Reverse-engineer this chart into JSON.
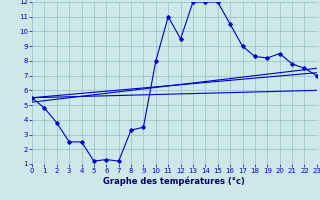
{
  "xlabel": "Graphe des températures (°c)",
  "bg_color": "#cce8e8",
  "grid_color": "#99bbcc",
  "line_color": "#0000cc",
  "x_min": 0,
  "x_max": 23,
  "y_min": 1,
  "y_max": 12,
  "line1_x": [
    0,
    1,
    2,
    3,
    4,
    5,
    6,
    7,
    8,
    9,
    10,
    11,
    12,
    13,
    14,
    15,
    16,
    17,
    18,
    19,
    20,
    21,
    22,
    23
  ],
  "line1_y": [
    5.5,
    4.8,
    3.8,
    2.5,
    2.5,
    1.2,
    1.3,
    1.2,
    3.3,
    3.5,
    8.0,
    11.0,
    9.5,
    12.0,
    12.0,
    12.0,
    10.5,
    9.0,
    8.3,
    8.2,
    8.5,
    7.8,
    7.5,
    7.0
  ],
  "line2_x": [
    0,
    23
  ],
  "line2_y": [
    5.5,
    7.2
  ],
  "line3_x": [
    0,
    23
  ],
  "line3_y": [
    5.5,
    6.0
  ],
  "line4_x": [
    0,
    23
  ],
  "line4_y": [
    5.2,
    7.5
  ]
}
